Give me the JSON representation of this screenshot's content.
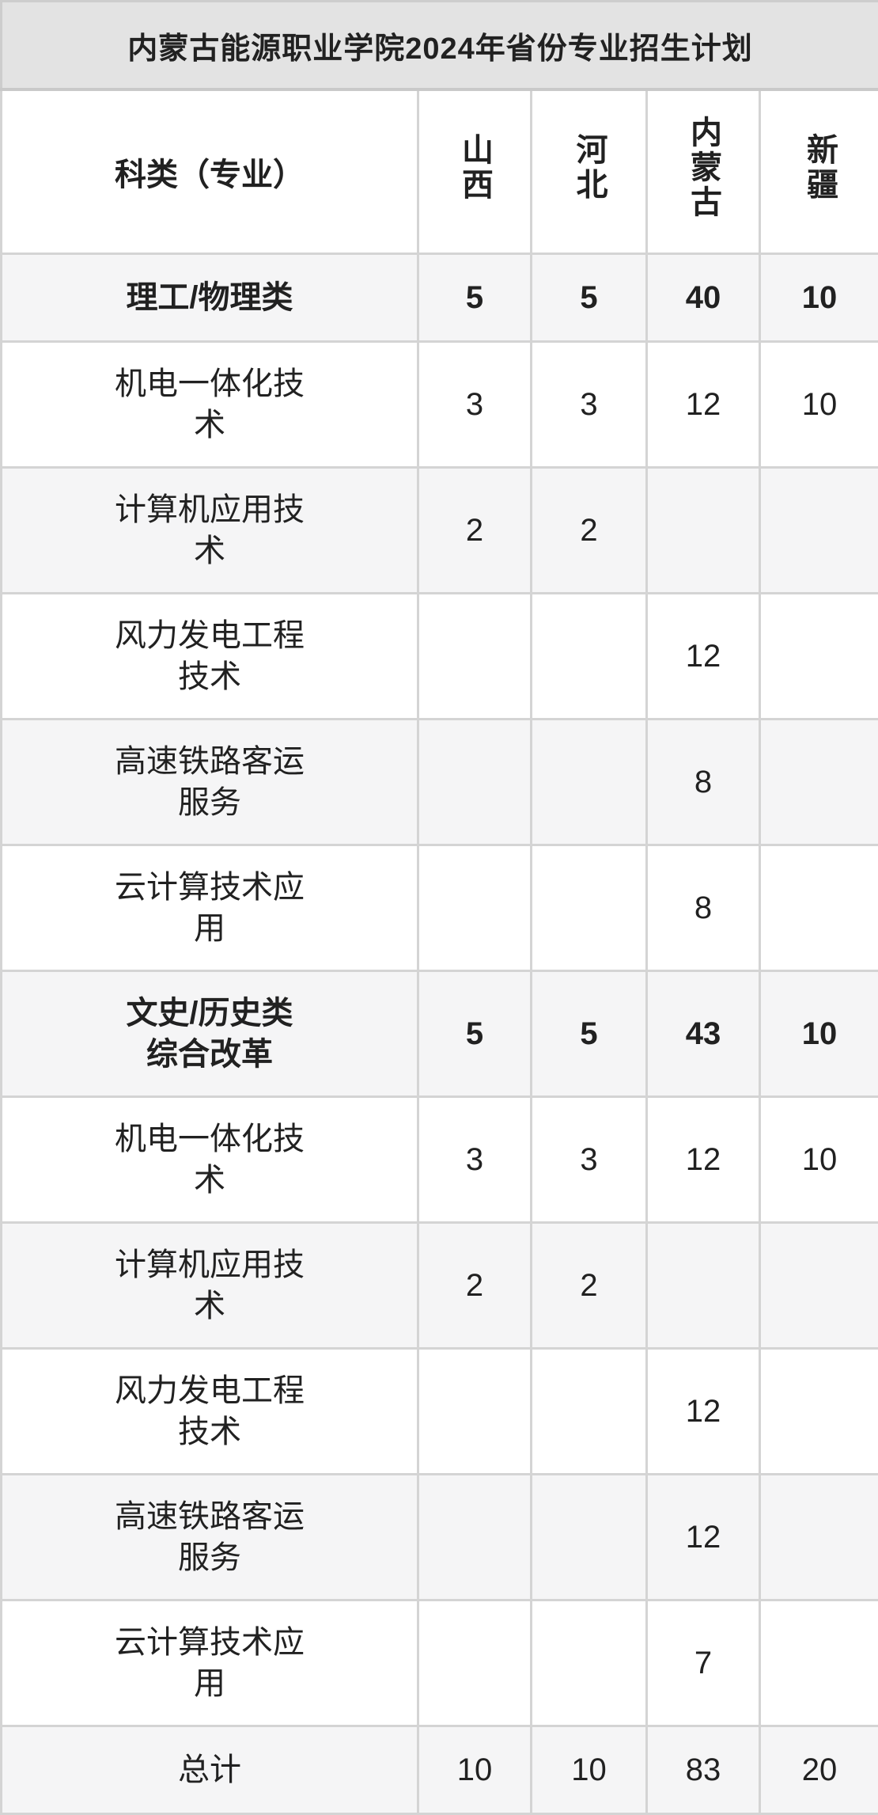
{
  "title": "内蒙古能源职业学院2024年省份专业招生计划",
  "table": {
    "corner_header": "科类（专业）",
    "province_headers": [
      "山西",
      "河北",
      "内蒙古",
      "新疆"
    ],
    "rows": [
      {
        "name": "理工/物理类",
        "style": "group",
        "values": [
          "5",
          "5",
          "40",
          "10"
        ]
      },
      {
        "name": "机电一体化技\n术",
        "style": "item",
        "values": [
          "3",
          "3",
          "12",
          "10"
        ]
      },
      {
        "name": "计算机应用技\n术",
        "style": "item",
        "values": [
          "2",
          "2",
          "",
          ""
        ]
      },
      {
        "name": "风力发电工程\n技术",
        "style": "item",
        "values": [
          "",
          "",
          "12",
          ""
        ]
      },
      {
        "name": "高速铁路客运\n服务",
        "style": "item",
        "values": [
          "",
          "",
          "8",
          ""
        ]
      },
      {
        "name": "云计算技术应\n用",
        "style": "item",
        "values": [
          "",
          "",
          "8",
          ""
        ]
      },
      {
        "name": "文史/历史类\n综合改革",
        "style": "group",
        "values": [
          "5",
          "5",
          "43",
          "10"
        ]
      },
      {
        "name": "机电一体化技\n术",
        "style": "item",
        "values": [
          "3",
          "3",
          "12",
          "10"
        ]
      },
      {
        "name": "计算机应用技\n术",
        "style": "item",
        "values": [
          "2",
          "2",
          "",
          ""
        ]
      },
      {
        "name": "风力发电工程\n技术",
        "style": "item",
        "values": [
          "",
          "",
          "12",
          ""
        ]
      },
      {
        "name": "高速铁路客运\n服务",
        "style": "item",
        "values": [
          "",
          "",
          "12",
          ""
        ]
      },
      {
        "name": "云计算技术应\n用",
        "style": "item",
        "values": [
          "",
          "",
          "7",
          ""
        ]
      },
      {
        "name": "总计",
        "style": "total",
        "values": [
          "10",
          "10",
          "83",
          "20"
        ]
      }
    ]
  },
  "colors": {
    "title_bg": "#e3e3e3",
    "shade_row_bg": "#f5f5f6",
    "border": "#d4d4d4",
    "text": "#212121"
  },
  "chart_data": {
    "type": "table",
    "title": "内蒙古能源职业学院2024年省份专业招生计划",
    "columns": [
      "科类（专业）",
      "山西",
      "河北",
      "内蒙古",
      "新疆"
    ],
    "rows": [
      [
        "理工/物理类",
        5,
        5,
        40,
        10
      ],
      [
        "机电一体化技术",
        3,
        3,
        12,
        10
      ],
      [
        "计算机应用技术",
        2,
        2,
        null,
        null
      ],
      [
        "风力发电工程技术",
        null,
        null,
        12,
        null
      ],
      [
        "高速铁路客运服务",
        null,
        null,
        8,
        null
      ],
      [
        "云计算技术应用",
        null,
        null,
        8,
        null
      ],
      [
        "文史/历史类综合改革",
        5,
        5,
        43,
        10
      ],
      [
        "机电一体化技术",
        3,
        3,
        12,
        10
      ],
      [
        "计算机应用技术",
        2,
        2,
        null,
        null
      ],
      [
        "风力发电工程技术",
        null,
        null,
        12,
        null
      ],
      [
        "高速铁路客运服务",
        null,
        null,
        12,
        null
      ],
      [
        "云计算技术应用",
        null,
        null,
        7,
        null
      ],
      [
        "总计",
        10,
        10,
        83,
        20
      ]
    ]
  }
}
